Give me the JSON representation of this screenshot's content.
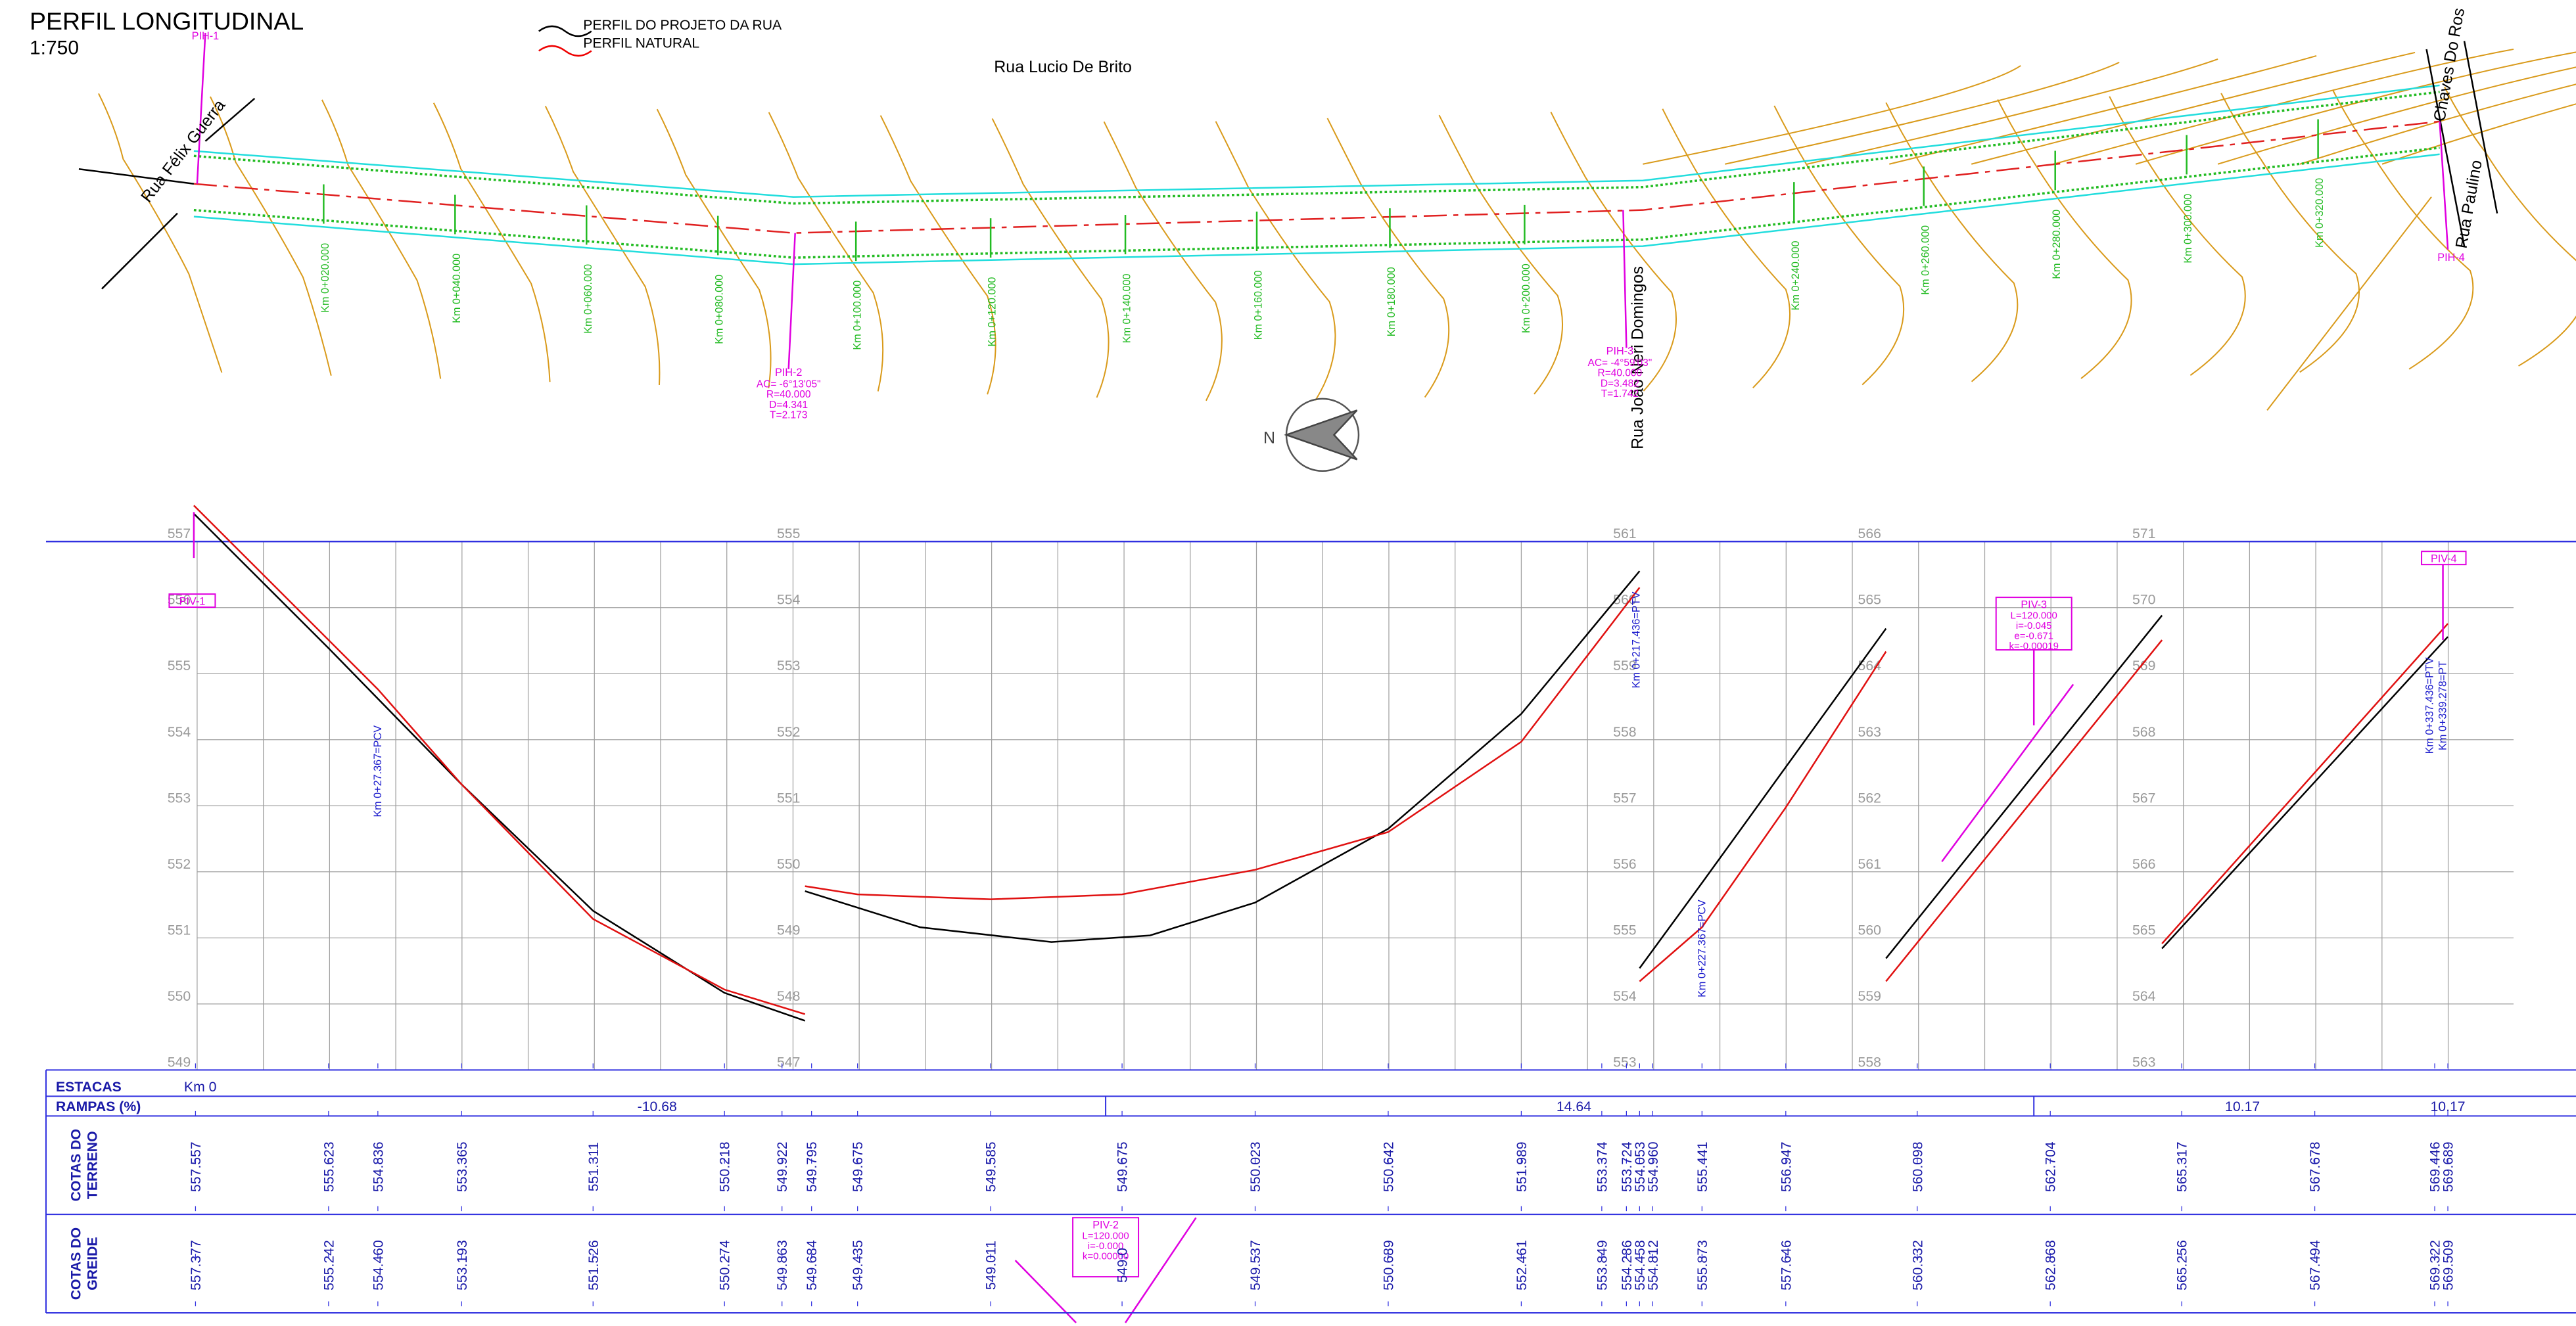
{
  "header": {
    "title": "PERFIL LONGITUDINAL",
    "scale": "1:750"
  },
  "legend": [
    {
      "label": "PERFIL DO PROJETO DA RUA"
    },
    {
      "label": "PERFIL NATURAL"
    }
  ],
  "plan": {
    "streets": [
      "Rua Lucio De Brito",
      "Rua Félix Guerra",
      "Rua João Neri Domingos",
      "Rua Paulino",
      "Chaves Do Ros"
    ],
    "north": "N",
    "pih": [
      {
        "label": "PIH-1",
        "details": []
      },
      {
        "label": "PIH-2",
        "details": [
          "AC= -6°13'05\"",
          "R=40.000",
          "D=4.341",
          "T=2.173"
        ]
      },
      {
        "label": "PIH-3",
        "details": [
          "AC= -4°59'03\"",
          "R=40.000",
          "D=3.482",
          "T=1.742"
        ]
      },
      {
        "label": "PIH-4",
        "details": []
      }
    ],
    "stations": [
      "Km 0+020.000",
      "Km 0+040.000",
      "Km 0+060.000",
      "Km 0+080.000",
      "Km 0+100.000",
      "Km 0+120.000",
      "Km 0+140.000",
      "Km 0+160.000",
      "Km 0+180.000",
      "Km 0+200.000",
      "Km 0+240.000",
      "Km 0+260.000",
      "Km 0+280.000",
      "Km 0+300.000",
      "Km 0+320.000"
    ]
  },
  "profile": {
    "elevation_columns": [
      [
        "557",
        "556",
        "555",
        "554",
        "553",
        "552",
        "551",
        "550",
        "549"
      ],
      [
        "555",
        "554",
        "553",
        "552",
        "551",
        "550",
        "549",
        "548",
        "547"
      ],
      [
        "561",
        "560",
        "559",
        "558",
        "557",
        "556",
        "555",
        "554",
        "553"
      ],
      [
        "566",
        "565",
        "564",
        "563",
        "562",
        "561",
        "560",
        "559",
        "558"
      ],
      [
        "571",
        "570",
        "569",
        "568",
        "567",
        "566",
        "565",
        "564",
        "563"
      ]
    ],
    "piv": [
      {
        "label": "PIV-1",
        "details": []
      },
      {
        "label": "PIV-2",
        "details": [
          "L=120.000",
          "i=-0.000",
          "k=0.00000"
        ]
      },
      {
        "label": "PIV-3",
        "details": [
          "L=120.000",
          "i=-0.045",
          "e=-0.671",
          "k=-0.00019"
        ]
      },
      {
        "label": "PIV-4",
        "details": []
      }
    ],
    "markers": [
      "Km 0+27.367=PCV",
      "Km 0+217.436=PTV",
      "Km 0+227.367=PCV",
      "Km 0+337.436=PTV",
      "Km 0+339.278=PT"
    ]
  },
  "table": {
    "estacas": {
      "label": "ESTACAS",
      "values": [
        "Km 0"
      ]
    },
    "rampas": {
      "label": "RAMPAS (%)",
      "values": [
        "-10.68",
        "14.64",
        "10.17",
        "10.17"
      ]
    },
    "terreno": {
      "label": [
        "COTAS DO",
        "TERRENO"
      ],
      "values": [
        "557.557",
        "555.623",
        "554.836",
        "553.365",
        "551.311",
        "550.218",
        "549.922",
        "549.795",
        "549.675",
        "549.585",
        "549.675",
        "550.023",
        "550.642",
        "551.989",
        "553.374",
        "553.724",
        "554.053",
        "554.960",
        "555.441",
        "556.947",
        "560.098",
        "562.704",
        "565.317",
        "567.678",
        "569.446",
        "569.689"
      ]
    },
    "greide": {
      "label": [
        "COTAS DO",
        "GREIDE"
      ],
      "values": [
        "557.377",
        "555.242",
        "554.460",
        "553.193",
        "551.526",
        "550.274",
        "549.863",
        "549.684",
        "549.435",
        "549.011",
        "549.0",
        "549.537",
        "550.689",
        "552.461",
        "553.849",
        "554.286",
        "554.458",
        "554.812",
        "555.873",
        "557.646",
        "560.332",
        "562.868",
        "565.256",
        "567.494",
        "569.322",
        "569.509"
      ]
    }
  }
}
